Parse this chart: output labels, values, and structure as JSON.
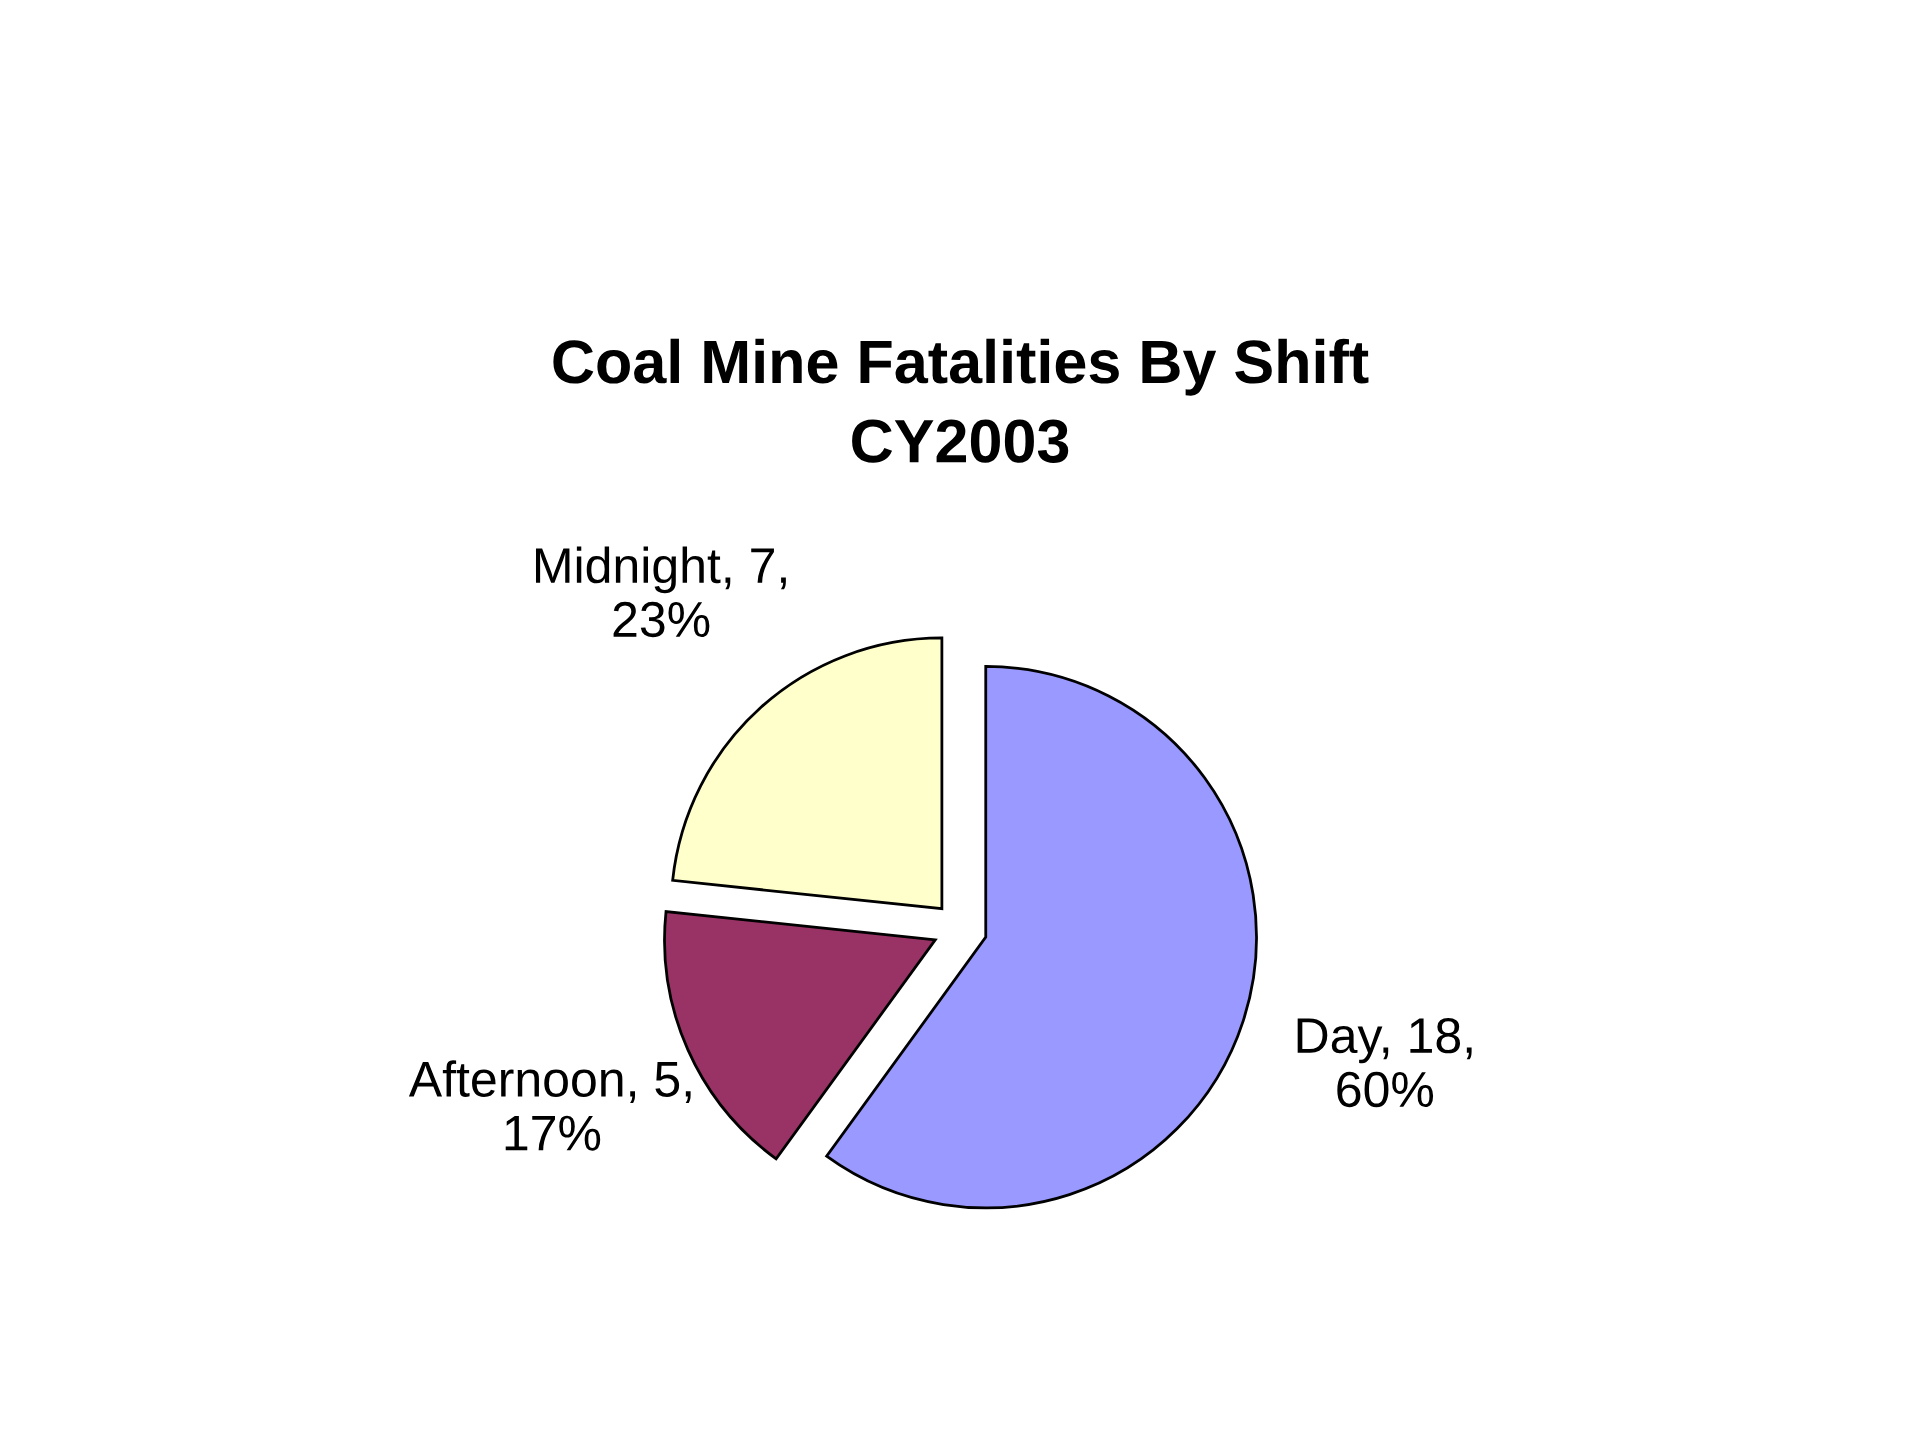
{
  "chart_data": {
    "type": "pie",
    "title": "Coal Mine Fatalities By Shift",
    "subtitle": "CY2003",
    "categories": [
      "Day",
      "Afternoon",
      "Midnight"
    ],
    "values": [
      18,
      5,
      7
    ],
    "colors": [
      "#9999ff",
      "#993366",
      "#ffffcc"
    ],
    "value_labels": [
      "18, 60%",
      "5, 17%",
      "7, 23%"
    ],
    "legend": false
  }
}
